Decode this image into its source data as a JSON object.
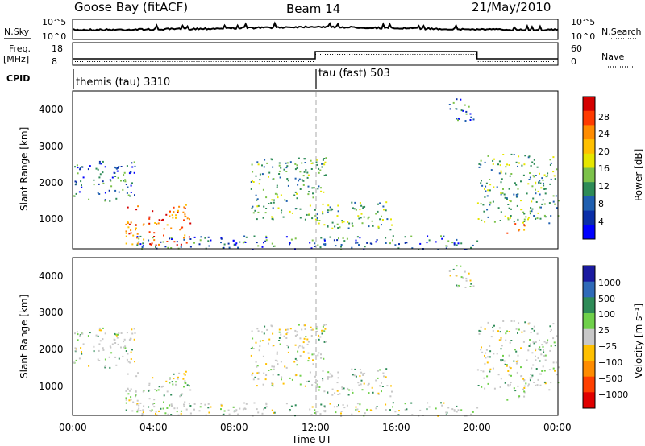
{
  "header": {
    "station": "Goose Bay (fitACF)",
    "beam": "Beam 14",
    "date": "21/May/2010"
  },
  "top_panel": {
    "left_label": "N.Sky",
    "right_label": "N.Search",
    "left_ticks": [
      "10^5",
      "10^0"
    ],
    "right_ticks": [
      "10^5",
      "10^0"
    ]
  },
  "freq_panel": {
    "left_label_1": "Freq.",
    "left_label_2": "[MHz]",
    "right_label": "Nave",
    "left_ticks": [
      "18",
      "8"
    ],
    "right_ticks": [
      "60",
      "0"
    ]
  },
  "cpid_panel": {
    "label": "CPID",
    "modes": [
      {
        "name": "themis (tau) 3310",
        "start_hour": 0
      },
      {
        "name": "tau (fast) 503",
        "start_hour": 12
      }
    ]
  },
  "axes": {
    "x_ticks": [
      "00:00",
      "04:00",
      "08:00",
      "12:00",
      "16:00",
      "20:00",
      "00:00"
    ],
    "x_label": "Time UT",
    "y_ticks": [
      "1000",
      "2000",
      "3000",
      "4000"
    ],
    "power_ylabel": "Slant Range [km]",
    "velocity_ylabel": "Slant Range [km]"
  },
  "power_colorbar": {
    "label": "Power [dB]",
    "ticks": [
      "28",
      "24",
      "20",
      "16",
      "12",
      "8",
      "4"
    ],
    "colors": [
      "#d40000",
      "#ff3b00",
      "#ff8c00",
      "#ffc000",
      "#e6e600",
      "#7cc24a",
      "#2e8b57",
      "#1f5fb0",
      "#0a2ea8",
      "#0000ff"
    ]
  },
  "velocity_colorbar": {
    "label": "Velocity [m s⁻¹]",
    "ticks": [
      "1000",
      "500",
      "100",
      "25",
      "−25",
      "−100",
      "−500",
      "−1000"
    ],
    "colors": [
      "#1a1aa0",
      "#2f6ab8",
      "#2e8b57",
      "#6fd04a",
      "#c8c8c8",
      "#ffc000",
      "#ff8c00",
      "#ff4000",
      "#e00000"
    ]
  },
  "chart_data": {
    "type": "heatmap",
    "x_range_hours": [
      0,
      24
    ],
    "y_range_km": [
      180,
      4500
    ],
    "vertical_marker_hour": 12,
    "power_regions": [
      {
        "t0": 2.6,
        "t1": 5.8,
        "r0": 300,
        "r1": 1400,
        "level": "high"
      },
      {
        "t0": 0.0,
        "t1": 3.2,
        "r0": 1500,
        "r1": 2600,
        "level": "low"
      },
      {
        "t0": 8.8,
        "t1": 12.5,
        "r0": 1000,
        "r1": 2700,
        "level": "medium"
      },
      {
        "t0": 12.0,
        "t1": 15.8,
        "r0": 700,
        "r1": 1500,
        "level": "medium"
      },
      {
        "t0": 18.6,
        "t1": 19.8,
        "r0": 3600,
        "r1": 4300,
        "level": "low"
      },
      {
        "t0": 20.0,
        "t1": 24.0,
        "r0": 900,
        "r1": 2800,
        "level": "medium"
      },
      {
        "t0": 21.4,
        "t1": 22.4,
        "r0": 600,
        "r1": 900,
        "level": "high"
      },
      {
        "t0": 3.0,
        "t1": 20.0,
        "r0": 180,
        "r1": 550,
        "level": "low"
      }
    ]
  }
}
